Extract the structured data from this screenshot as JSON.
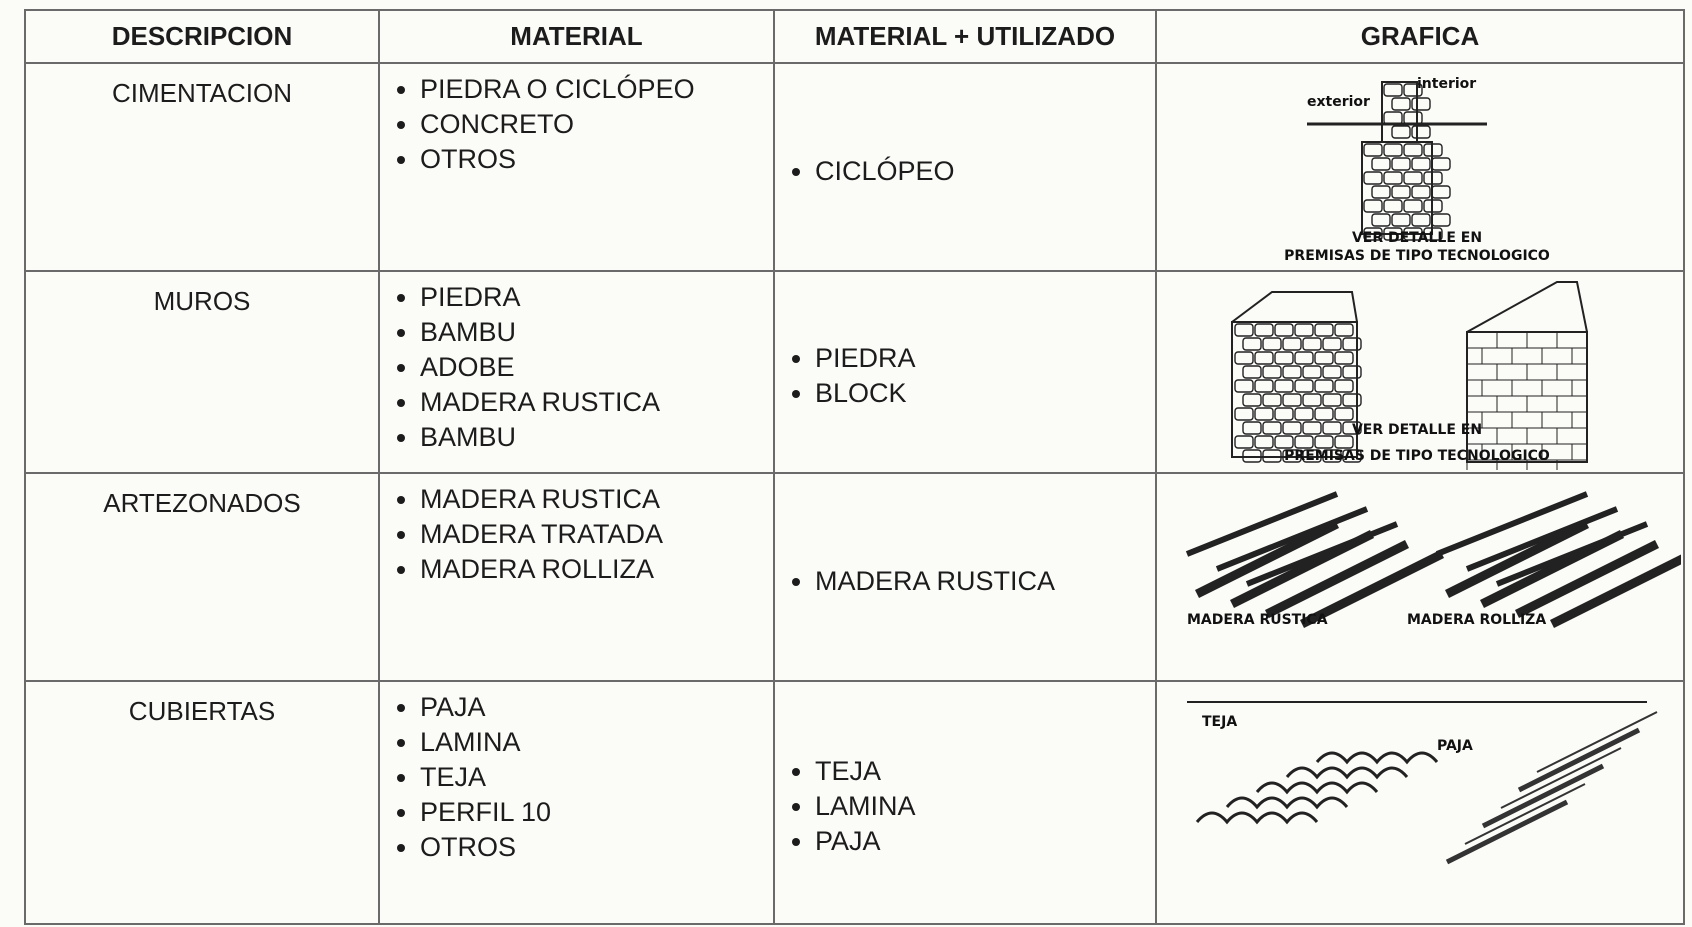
{
  "table": {
    "headers": [
      "DESCRIPCION",
      "MATERIAL",
      "MATERIAL + UTILIZADO",
      "GRAFICA"
    ],
    "rows": [
      {
        "description": "CIMENTACION",
        "materials": [
          "PIEDRA O CICLÓPEO",
          "CONCRETO",
          "OTROS"
        ],
        "used": [
          "CICLÓPEO"
        ],
        "graphic_labels": [
          "exterior",
          "interior",
          "VER DETALLE EN",
          "PREMISAS DE TIPO TECNOLOGICO"
        ]
      },
      {
        "description": "MUROS",
        "materials": [
          "PIEDRA",
          "BAMBU",
          "ADOBE",
          "MADERA RUSTICA",
          "BAMBU"
        ],
        "used": [
          "PIEDRA",
          "BLOCK"
        ],
        "graphic_labels": [
          "VER DETALLE EN",
          "PREMISAS DE TIPO TECNOLOGICO"
        ]
      },
      {
        "description": "ARTEZONADOS",
        "materials": [
          "MADERA RUSTICA",
          "MADERA TRATADA",
          "MADERA ROLLIZA"
        ],
        "used": [
          "MADERA RUSTICA"
        ],
        "graphic_labels": [
          "MADERA RUSTICA",
          "MADERA ROLLIZA"
        ]
      },
      {
        "description": "CUBIERTAS",
        "materials": [
          "PAJA",
          "LAMINA",
          "TEJA",
          "PERFIL 10",
          "OTROS"
        ],
        "used": [
          "TEJA",
          "LAMINA",
          "PAJA"
        ],
        "graphic_labels": [
          "TEJA",
          "PAJA"
        ]
      }
    ]
  }
}
